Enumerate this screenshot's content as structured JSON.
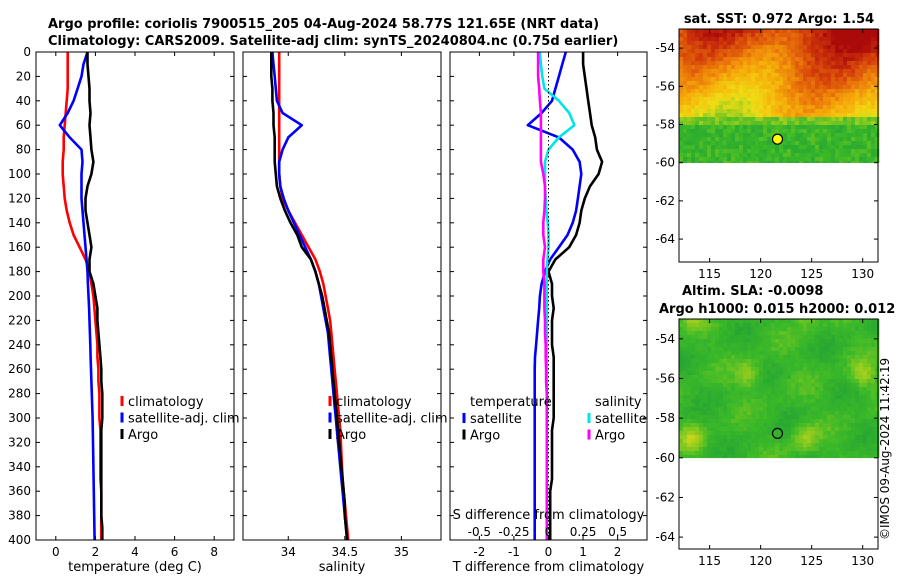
{
  "header": {
    "line1": "Argo profile: coriolis 7900515_205 04-Aug-2024 58.77S 121.65E (NRT data)",
    "line2": "Climatology: CARS2009. Satellite-adj clim: synTS_20240804.nc (0.75d earlier)"
  },
  "credit": "©IMOS 09-Aug-2024 11:42:19",
  "colors": {
    "climatology": "#ff0000",
    "satellite": "#0000ff",
    "argo": "#000000",
    "sat_salinity": "#00e5e5",
    "argo_salinity": "#ff00ff"
  },
  "chart_data": [
    {
      "type": "line",
      "id": "temperature",
      "xlabel": "temperature (deg C)",
      "xlim": [
        -1,
        9
      ],
      "xticks": [
        0,
        2,
        4,
        6,
        8
      ],
      "xtick_labels": [
        "0",
        "2",
        "4",
        "6",
        "8"
      ],
      "ylim": [
        0,
        400
      ],
      "yticks": [
        0,
        20,
        40,
        60,
        80,
        100,
        120,
        140,
        160,
        180,
        200,
        220,
        240,
        260,
        280,
        300,
        320,
        340,
        360,
        380,
        400
      ],
      "legend": [
        "climatology",
        "satellite-adj. clim",
        "Argo"
      ],
      "depth": [
        0,
        10,
        20,
        30,
        40,
        50,
        60,
        70,
        80,
        90,
        100,
        110,
        120,
        130,
        140,
        150,
        160,
        170,
        180,
        190,
        200,
        210,
        220,
        230,
        240,
        250,
        260,
        270,
        280,
        290,
        300,
        310,
        320,
        330,
        340,
        350,
        360,
        370,
        380,
        390,
        400
      ],
      "series": [
        {
          "name": "climatology",
          "color": "#ff0000",
          "x": [
            0.6,
            0.6,
            0.6,
            0.6,
            0.55,
            0.5,
            0.45,
            0.4,
            0.4,
            0.35,
            0.35,
            0.4,
            0.45,
            0.55,
            0.7,
            0.9,
            1.2,
            1.5,
            1.7,
            1.8,
            1.9,
            1.95,
            2.0,
            2.05,
            2.1,
            2.1,
            2.15,
            2.15,
            2.2,
            2.2,
            2.2,
            2.25,
            2.25,
            2.25,
            2.25,
            2.25,
            2.3,
            2.3,
            2.3,
            2.3,
            2.3
          ]
        },
        {
          "name": "satellite-adj. clim",
          "color": "#0000ff",
          "x": [
            1.6,
            1.4,
            1.3,
            1.1,
            0.9,
            0.6,
            0.2,
            0.7,
            1.3,
            1.35,
            1.3,
            1.3,
            1.3,
            1.35,
            1.4,
            1.45,
            1.5,
            1.55,
            1.6,
            1.62,
            1.65,
            1.68,
            1.7,
            1.72,
            1.74,
            1.76,
            1.78,
            1.8,
            1.82,
            1.84,
            1.86,
            1.87,
            1.88,
            1.89,
            1.9,
            1.91,
            1.92,
            1.93,
            1.94,
            1.95,
            1.96
          ]
        },
        {
          "name": "Argo",
          "color": "#000000",
          "x": [
            1.6,
            1.6,
            1.65,
            1.7,
            1.7,
            1.75,
            1.7,
            1.75,
            1.8,
            1.9,
            1.8,
            1.6,
            1.5,
            1.5,
            1.6,
            1.7,
            1.8,
            1.7,
            1.7,
            1.9,
            2.0,
            2.1,
            2.1,
            2.15,
            2.2,
            2.25,
            2.3,
            2.3,
            2.35,
            2.35,
            2.35,
            2.3,
            2.3,
            2.3,
            2.3,
            2.3,
            2.3,
            2.3,
            2.3,
            2.35,
            2.35
          ]
        }
      ]
    },
    {
      "type": "line",
      "id": "salinity",
      "xlabel": "salinity",
      "xlim": [
        33.6,
        35.35
      ],
      "xticks": [
        34,
        34.5,
        35
      ],
      "xtick_labels": [
        "34",
        "34.5",
        "35"
      ],
      "ylim": [
        0,
        400
      ],
      "legend": [
        "climatology",
        "satellite-adj. clim",
        "Argo"
      ],
      "depth": [
        0,
        10,
        20,
        30,
        40,
        50,
        60,
        70,
        80,
        90,
        100,
        110,
        120,
        130,
        140,
        150,
        160,
        170,
        180,
        190,
        200,
        210,
        220,
        230,
        240,
        250,
        260,
        270,
        280,
        290,
        300,
        310,
        320,
        330,
        340,
        350,
        360,
        370,
        380,
        390,
        400
      ],
      "series": [
        {
          "name": "climatology",
          "color": "#ff0000",
          "x": [
            33.92,
            33.92,
            33.92,
            33.92,
            33.92,
            33.92,
            33.92,
            33.92,
            33.92,
            33.92,
            33.92,
            33.93,
            33.95,
            34.0,
            34.06,
            34.12,
            34.18,
            34.24,
            34.28,
            34.31,
            34.33,
            34.35,
            34.37,
            34.38,
            34.39,
            34.4,
            34.41,
            34.42,
            34.43,
            34.44,
            34.45,
            34.46,
            34.465,
            34.47,
            34.475,
            34.48,
            34.49,
            34.5,
            34.51,
            34.52,
            34.53
          ]
        },
        {
          "name": "satellite-adj. clim",
          "color": "#0000ff",
          "x": [
            33.86,
            33.87,
            33.88,
            33.89,
            33.9,
            33.95,
            34.12,
            34.0,
            33.95,
            33.92,
            33.92,
            33.93,
            33.96,
            34.0,
            34.05,
            34.1,
            34.15,
            34.2,
            34.24,
            34.27,
            34.29,
            34.31,
            34.33,
            34.35,
            34.36,
            34.37,
            34.38,
            34.39,
            34.4,
            34.41,
            34.42,
            34.43,
            34.44,
            34.45,
            34.46,
            34.47,
            34.48,
            34.49,
            34.5,
            34.51,
            34.52
          ]
        },
        {
          "name": "Argo",
          "color": "#000000",
          "x": [
            33.85,
            33.85,
            33.85,
            33.86,
            33.86,
            33.87,
            33.87,
            33.88,
            33.88,
            33.88,
            33.89,
            33.9,
            33.93,
            33.97,
            34.02,
            34.08,
            34.12,
            34.2,
            34.24,
            34.27,
            34.3,
            34.32,
            34.34,
            34.36,
            34.37,
            34.38,
            34.39,
            34.4,
            34.41,
            34.42,
            34.43,
            34.44,
            34.45,
            34.46,
            34.47,
            34.48,
            34.49,
            34.5,
            34.5,
            34.51,
            34.52
          ]
        }
      ]
    },
    {
      "type": "line",
      "id": "difference",
      "xlabel": "T difference from climatology",
      "xlim": [
        -2.85,
        2.85
      ],
      "xticks": [
        -2,
        -1,
        0,
        1,
        2
      ],
      "xtick_labels": [
        "-2",
        "-1",
        "0",
        "1",
        "2"
      ],
      "top_axis_label": "S difference from climatology",
      "top_ticks": [
        -0.5,
        -0.25,
        0,
        0.25,
        0.5
      ],
      "top_tick_labels": [
        "-0.5",
        "-0.25",
        "0",
        "0.25",
        "0.5"
      ],
      "top_scale": 0.25,
      "ylim": [
        0,
        400
      ],
      "legend_temperature": {
        "title": "temperature",
        "entries": [
          "satellite",
          "Argo"
        ]
      },
      "legend_salinity": {
        "title": "salinity",
        "entries": [
          "satellite",
          "Argo"
        ]
      },
      "depth": [
        0,
        10,
        20,
        30,
        40,
        50,
        60,
        70,
        80,
        90,
        100,
        110,
        120,
        130,
        140,
        150,
        160,
        170,
        180,
        190,
        200,
        210,
        220,
        230,
        240,
        250,
        260,
        270,
        280,
        290,
        300,
        310,
        320,
        330,
        340,
        350,
        360,
        370,
        380,
        390,
        400
      ],
      "series": [
        {
          "name": "temperature satellite",
          "color": "#0000ff",
          "x": [
            0.5,
            0.4,
            0.3,
            0.2,
            0.1,
            -0.2,
            -0.6,
            0.3,
            0.7,
            0.9,
            0.95,
            0.9,
            0.85,
            0.8,
            0.7,
            0.55,
            0.3,
            0.05,
            -0.1,
            -0.2,
            -0.25,
            -0.27,
            -0.3,
            -0.33,
            -0.36,
            -0.39,
            -0.4,
            -0.4,
            -0.4,
            -0.4,
            -0.4,
            -0.4,
            -0.4,
            -0.4,
            -0.4,
            -0.4,
            -0.4,
            -0.4,
            -0.4,
            -0.4,
            -0.4
          ]
        },
        {
          "name": "temperature Argo",
          "color": "#000000",
          "x": [
            1.0,
            1.0,
            1.05,
            1.1,
            1.15,
            1.2,
            1.25,
            1.35,
            1.4,
            1.55,
            1.45,
            1.2,
            1.05,
            0.95,
            0.9,
            0.8,
            0.6,
            0.2,
            0.0,
            0.1,
            0.1,
            0.15,
            0.1,
            0.1,
            0.1,
            0.15,
            0.15,
            0.15,
            0.15,
            0.15,
            0.15,
            0.1,
            0.1,
            0.1,
            0.1,
            0.1,
            0.05,
            0.05,
            0.05,
            0.05,
            0.05
          ]
        },
        {
          "name": "salinity satellite",
          "color": "#00e5e5",
          "x": [
            -0.25,
            -0.22,
            -0.18,
            -0.12,
            0.3,
            0.6,
            0.75,
            0.3,
            0.0,
            -0.1,
            -0.1,
            -0.1,
            -0.08,
            -0.06,
            -0.02,
            0.0,
            0.0,
            -0.03,
            -0.05,
            -0.05,
            -0.05,
            -0.05,
            -0.05,
            -0.05,
            -0.05,
            -0.05,
            -0.05,
            -0.05,
            -0.05,
            -0.05,
            -0.05,
            -0.05,
            -0.05,
            -0.05,
            -0.05,
            -0.05,
            -0.05,
            -0.05,
            -0.05,
            -0.05,
            -0.05
          ]
        },
        {
          "name": "salinity Argo",
          "color": "#ff00ff",
          "x": [
            -0.3,
            -0.3,
            -0.3,
            -0.27,
            -0.25,
            -0.22,
            -0.22,
            -0.22,
            -0.22,
            -0.22,
            -0.15,
            -0.1,
            -0.1,
            -0.12,
            -0.15,
            -0.15,
            -0.1,
            -0.15,
            -0.15,
            -0.12,
            -0.12,
            -0.12,
            -0.1,
            -0.1,
            -0.08,
            -0.08,
            -0.07,
            -0.07,
            -0.05,
            -0.05,
            -0.05,
            -0.05,
            -0.05,
            -0.05,
            -0.05,
            -0.05,
            -0.05,
            -0.05,
            -0.05,
            -0.05,
            -0.05
          ]
        }
      ]
    },
    {
      "type": "heatmap",
      "id": "sst_map",
      "title": "sat. SST: 0.972 Argo: 1.54",
      "xlim": [
        112,
        131.5
      ],
      "ylim": [
        -65.2,
        -53
      ],
      "xticks": [
        115,
        120,
        125,
        130
      ],
      "yticks": [
        -54,
        -56,
        -58,
        -60,
        -62,
        -64
      ],
      "data_extent_lat": [
        -60,
        -53
      ],
      "profile_location": {
        "lon": 121.65,
        "lat": -58.77
      }
    },
    {
      "type": "heatmap",
      "id": "sla_map",
      "title_line1": "Altim. SLA: -0.0098",
      "title_line2": "Argo h1000: 0.015 h2000: 0.012",
      "xlim": [
        112,
        131.5
      ],
      "ylim": [
        -64.6,
        -53
      ],
      "xticks": [
        115,
        120,
        125,
        130
      ],
      "yticks": [
        -54,
        -56,
        -58,
        -60,
        -62,
        -64
      ],
      "data_extent_lat": [
        -60,
        -53
      ],
      "profile_location": {
        "lon": 121.65,
        "lat": -58.77
      }
    }
  ]
}
